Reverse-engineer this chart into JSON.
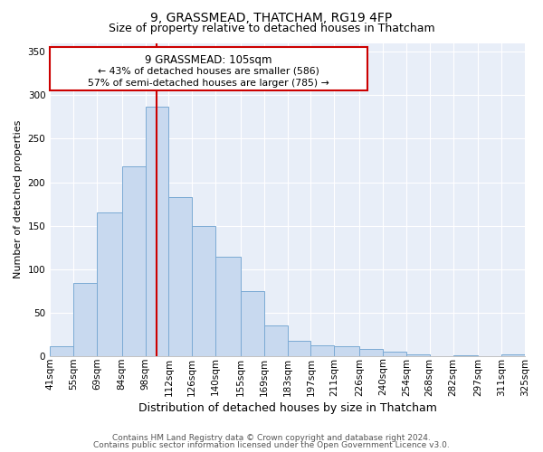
{
  "title": "9, GRASSMEAD, THATCHAM, RG19 4FP",
  "subtitle": "Size of property relative to detached houses in Thatcham",
  "xlabel": "Distribution of detached houses by size in Thatcham",
  "ylabel": "Number of detached properties",
  "bar_labels": [
    "41sqm",
    "55sqm",
    "69sqm",
    "84sqm",
    "98sqm",
    "112sqm",
    "126sqm",
    "140sqm",
    "155sqm",
    "169sqm",
    "183sqm",
    "197sqm",
    "211sqm",
    "226sqm",
    "240sqm",
    "254sqm",
    "268sqm",
    "282sqm",
    "297sqm",
    "311sqm",
    "325sqm"
  ],
  "bar_values": [
    11,
    84,
    165,
    218,
    287,
    183,
    150,
    114,
    75,
    35,
    18,
    13,
    11,
    8,
    5,
    2,
    0,
    1,
    0,
    2
  ],
  "bin_edges": [
    41,
    55,
    69,
    84,
    98,
    112,
    126,
    140,
    155,
    169,
    183,
    197,
    211,
    226,
    240,
    254,
    268,
    282,
    297,
    311,
    325
  ],
  "bar_color": "#c8d9ef",
  "bar_edge_color": "#7baad4",
  "vline_x": 105,
  "vline_color": "#cc0000",
  "annotation_title": "9 GRASSMEAD: 105sqm",
  "annotation_line1": "← 43% of detached houses are smaller (586)",
  "annotation_line2": "57% of semi-detached houses are larger (785) →",
  "box_facecolor": "#ffffff",
  "box_edgecolor": "#cc0000",
  "ylim": [
    0,
    360
  ],
  "yticks": [
    0,
    50,
    100,
    150,
    200,
    250,
    300,
    350
  ],
  "bg_color": "#ffffff",
  "plot_bg_color": "#e8eef8",
  "grid_color": "#ffffff",
  "title_fontsize": 10,
  "subtitle_fontsize": 9,
  "ylabel_fontsize": 8,
  "xlabel_fontsize": 9,
  "tick_fontsize": 7.5,
  "footer1": "Contains HM Land Registry data © Crown copyright and database right 2024.",
  "footer2": "Contains public sector information licensed under the Open Government Licence v3.0.",
  "footer_fontsize": 6.5
}
